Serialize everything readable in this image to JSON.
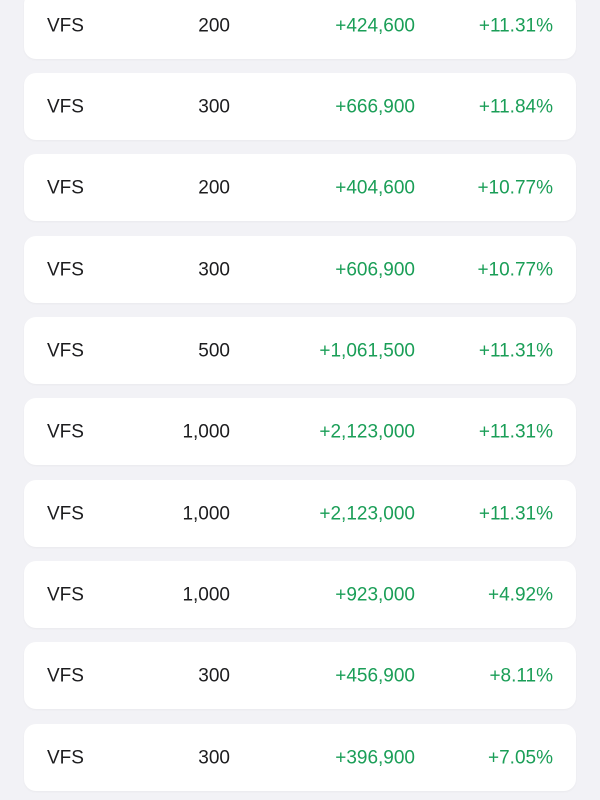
{
  "theme": {
    "background": "#f2f2f6",
    "card": "#ffffff",
    "text": "#1c1c1e",
    "positive": "#1a9e57"
  },
  "rows": [
    {
      "symbol": "VFS",
      "quantity": "200",
      "profit": "+424,600",
      "percent": "+11.31%"
    },
    {
      "symbol": "VFS",
      "quantity": "300",
      "profit": "+666,900",
      "percent": "+11.84%"
    },
    {
      "symbol": "VFS",
      "quantity": "200",
      "profit": "+404,600",
      "percent": "+10.77%"
    },
    {
      "symbol": "VFS",
      "quantity": "300",
      "profit": "+606,900",
      "percent": "+10.77%"
    },
    {
      "symbol": "VFS",
      "quantity": "500",
      "profit": "+1,061,500",
      "percent": "+11.31%"
    },
    {
      "symbol": "VFS",
      "quantity": "1,000",
      "profit": "+2,123,000",
      "percent": "+11.31%"
    },
    {
      "symbol": "VFS",
      "quantity": "1,000",
      "profit": "+2,123,000",
      "percent": "+11.31%"
    },
    {
      "symbol": "VFS",
      "quantity": "1,000",
      "profit": "+923,000",
      "percent": "+4.92%"
    },
    {
      "symbol": "VFS",
      "quantity": "300",
      "profit": "+456,900",
      "percent": "+8.11%"
    },
    {
      "symbol": "VFS",
      "quantity": "300",
      "profit": "+396,900",
      "percent": "+7.05%"
    }
  ]
}
